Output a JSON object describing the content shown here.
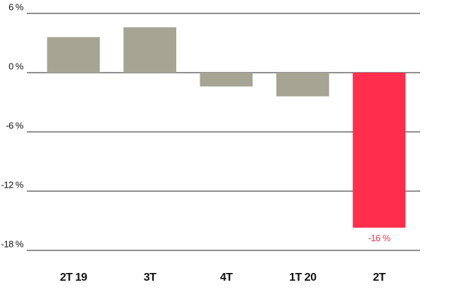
{
  "chart_data": {
    "type": "bar",
    "categories": [
      "2T 19",
      "3T",
      "4T",
      "1T 20",
      "2T"
    ],
    "values": [
      3.6,
      4.6,
      -1.4,
      -2.4,
      -15.7
    ],
    "value_labels": [
      null,
      null,
      null,
      null,
      "-16 %"
    ],
    "colors": [
      "#a6a593",
      "#a6a593",
      "#a6a593",
      "#a6a593",
      "#ff2e4c"
    ],
    "ylim": [
      -18,
      6
    ],
    "yticks": [
      {
        "value": 6,
        "label": "6 %"
      },
      {
        "value": 0,
        "label": "0 %"
      },
      {
        "value": -6,
        "label": "-6 %"
      },
      {
        "value": -12,
        "label": "-12 %"
      },
      {
        "value": -18,
        "label": "-18 %"
      }
    ],
    "grid": true
  }
}
